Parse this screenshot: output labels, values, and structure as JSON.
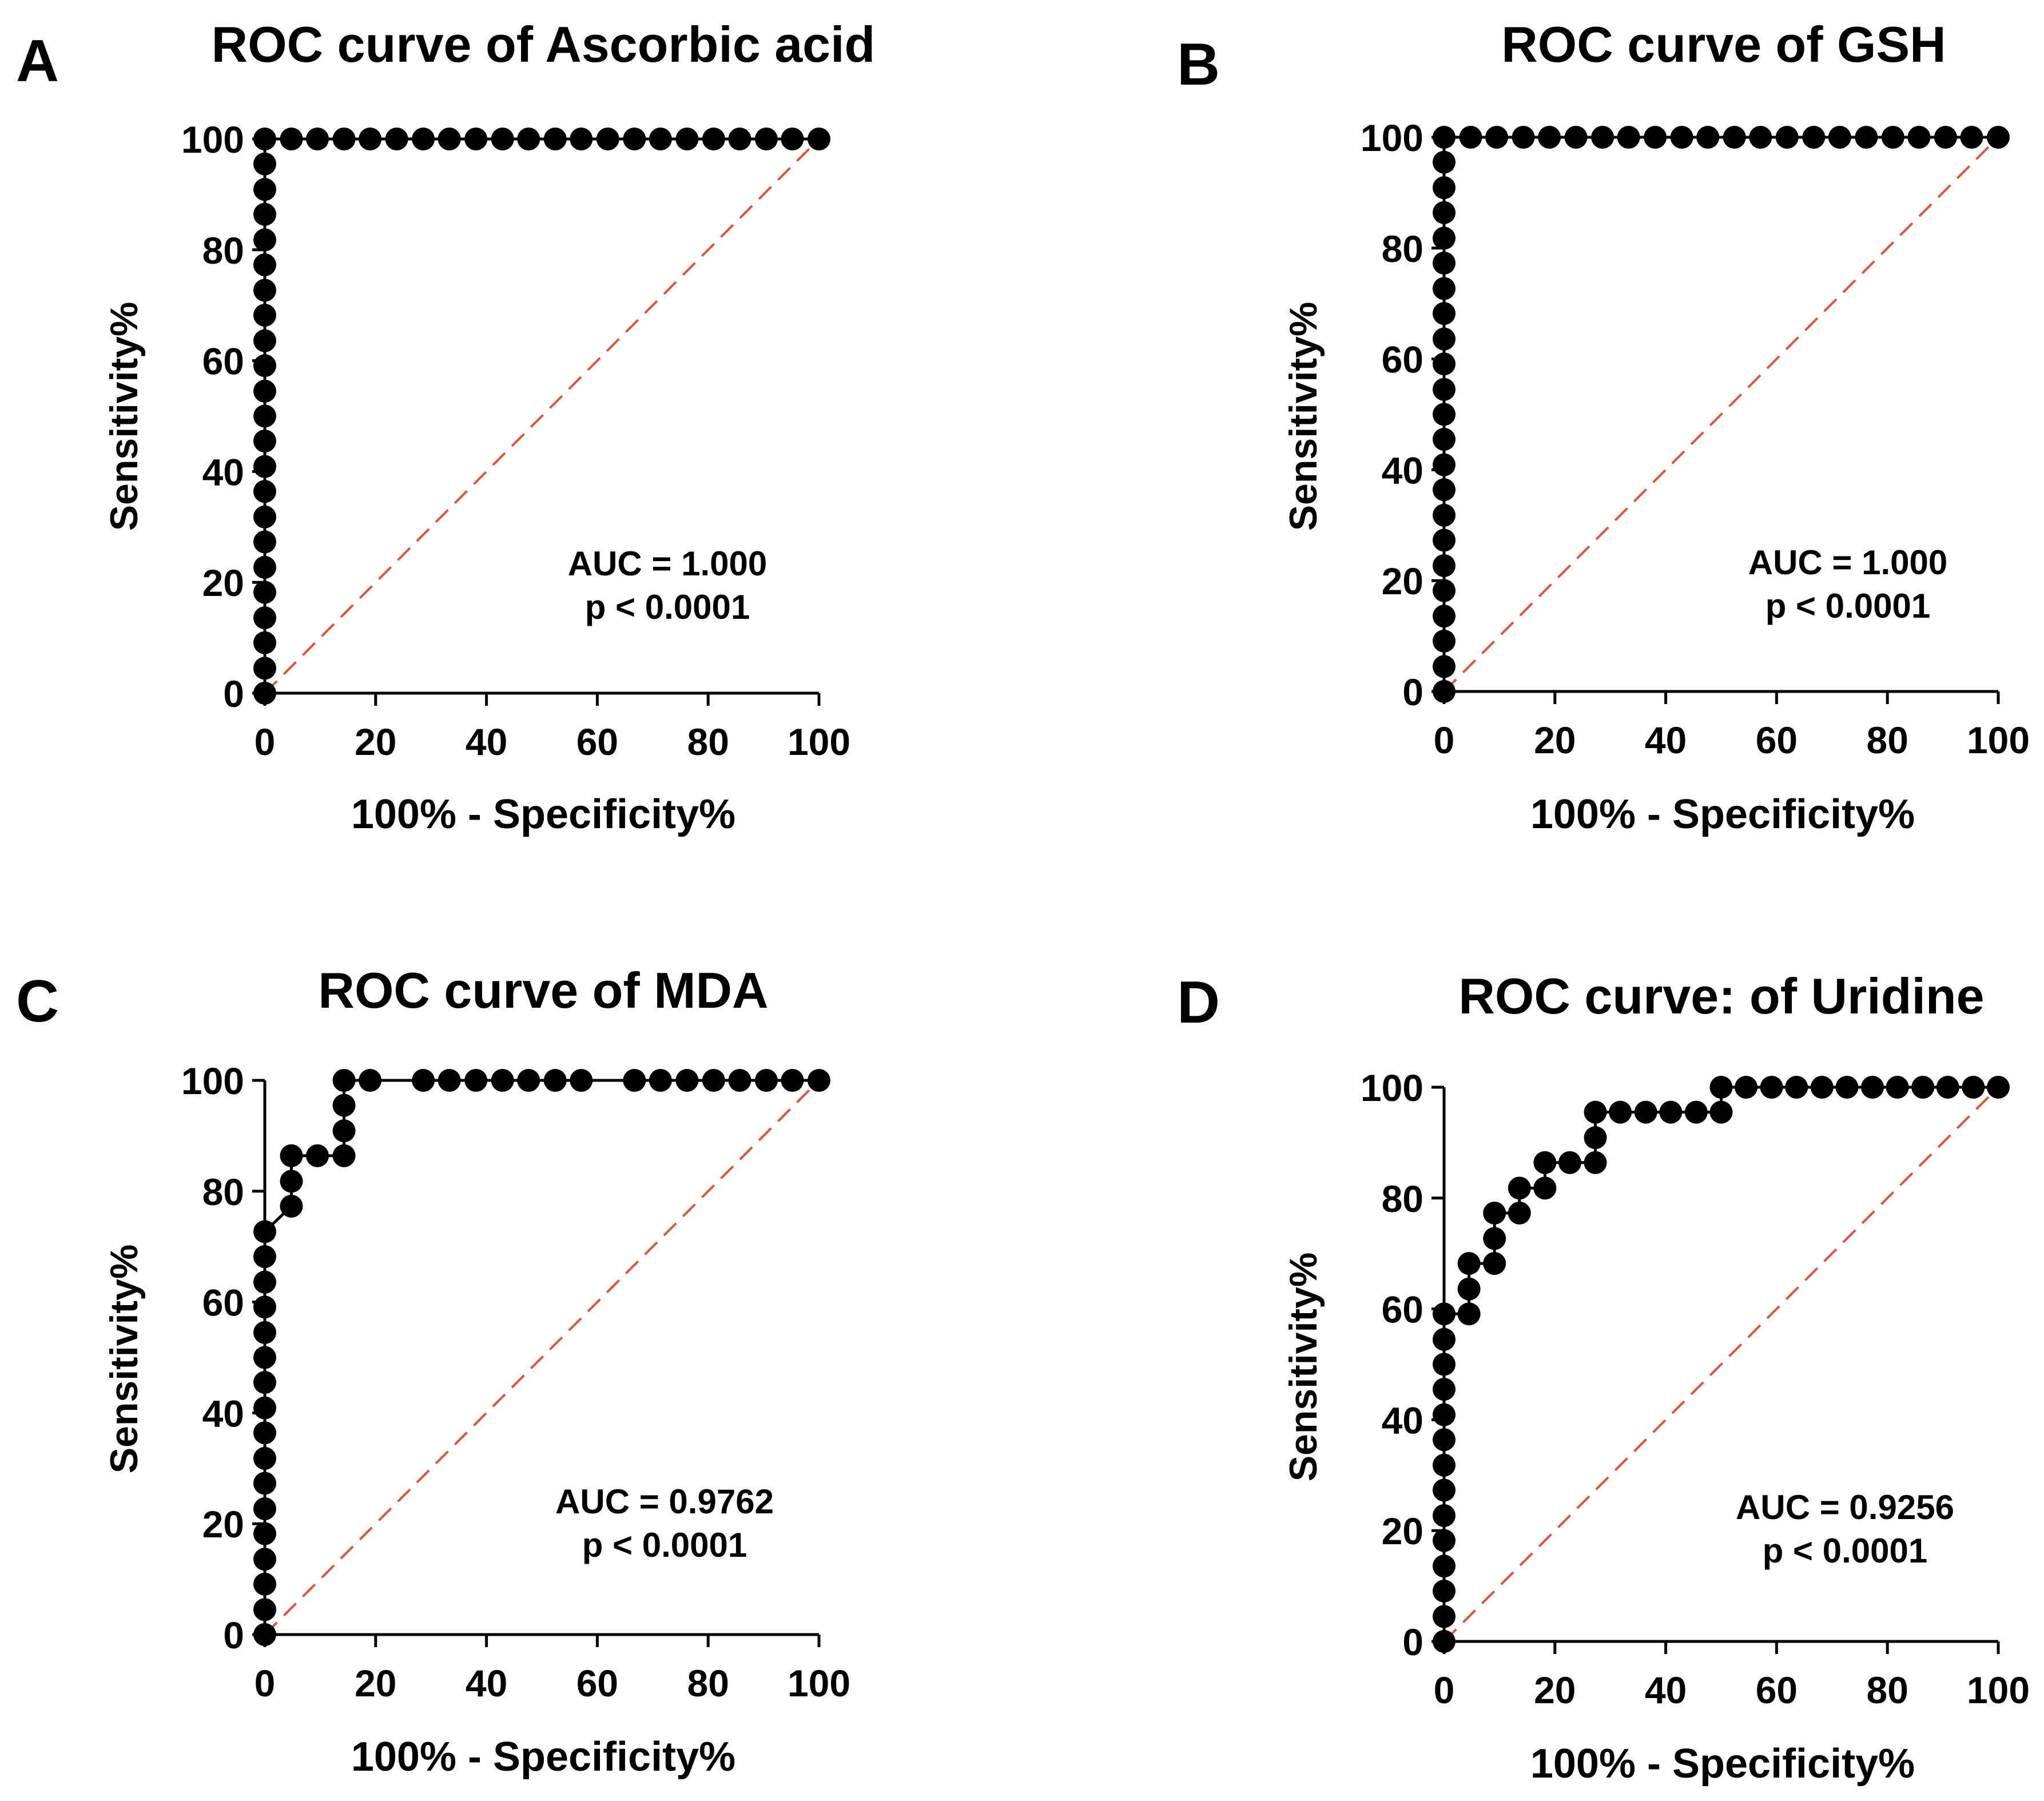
{
  "colors": {
    "marker": "#000000",
    "axis": "#000000",
    "reference_line": "#E0533C",
    "background": "#FFFFFF"
  },
  "chart_data": [
    {
      "panel_letter": "A",
      "type": "scatter",
      "title": "ROC curve of Ascorbic acid",
      "xlabel": "100% - Specificity%",
      "ylabel": "Sensitivity%",
      "xlim": [
        0,
        100
      ],
      "ylim": [
        0,
        100
      ],
      "xticks": [
        0,
        20,
        40,
        60,
        80,
        100
      ],
      "yticks": [
        0,
        20,
        40,
        60,
        80,
        100
      ],
      "annotation": [
        "AUC = 1.000",
        "p < 0.0001"
      ],
      "annotation_placement": "lower-right",
      "reference_line": {
        "from": [
          0,
          0
        ],
        "to": [
          100,
          100
        ],
        "style": "dashed"
      },
      "connect_points": true,
      "series": [
        {
          "name": "ROC",
          "points": [
            [
              0,
              0
            ],
            [
              0,
              4.5
            ],
            [
              0,
              9.1
            ],
            [
              0,
              13.6
            ],
            [
              0,
              18.2
            ],
            [
              0,
              22.7
            ],
            [
              0,
              27.3
            ],
            [
              0,
              31.8
            ],
            [
              0,
              36.4
            ],
            [
              0,
              40.9
            ],
            [
              0,
              45.5
            ],
            [
              0,
              50
            ],
            [
              0,
              54.5
            ],
            [
              0,
              59.1
            ],
            [
              0,
              63.6
            ],
            [
              0,
              68.2
            ],
            [
              0,
              72.7
            ],
            [
              0,
              77.3
            ],
            [
              0,
              81.8
            ],
            [
              0,
              86.4
            ],
            [
              0,
              90.9
            ],
            [
              0,
              95.5
            ],
            [
              0,
              100
            ],
            [
              4.8,
              100
            ],
            [
              9.5,
              100
            ],
            [
              14.3,
              100
            ],
            [
              19,
              100
            ],
            [
              23.8,
              100
            ],
            [
              28.6,
              100
            ],
            [
              33.3,
              100
            ],
            [
              38.1,
              100
            ],
            [
              42.9,
              100
            ],
            [
              47.6,
              100
            ],
            [
              52.4,
              100
            ],
            [
              57.1,
              100
            ],
            [
              61.9,
              100
            ],
            [
              66.7,
              100
            ],
            [
              71.4,
              100
            ],
            [
              76.2,
              100
            ],
            [
              81,
              100
            ],
            [
              85.7,
              100
            ],
            [
              90.5,
              100
            ],
            [
              95.2,
              100
            ],
            [
              100,
              100
            ]
          ]
        }
      ]
    },
    {
      "panel_letter": "B",
      "type": "scatter",
      "title": "ROC curve of GSH",
      "xlabel": "100% - Specificity%",
      "ylabel": "Sensitivity%",
      "xlim": [
        0,
        100
      ],
      "ylim": [
        0,
        100
      ],
      "xticks": [
        0,
        20,
        40,
        60,
        80,
        100
      ],
      "yticks": [
        0,
        20,
        40,
        60,
        80,
        100
      ],
      "annotation": [
        "AUC = 1.000",
        "p < 0.0001"
      ],
      "annotation_placement": "lower-right",
      "reference_line": {
        "from": [
          0,
          0
        ],
        "to": [
          100,
          100
        ],
        "style": "dashed"
      },
      "connect_points": true,
      "series": [
        {
          "name": "ROC",
          "points": [
            [
              0,
              0
            ],
            [
              0,
              4.5
            ],
            [
              0,
              9.1
            ],
            [
              0,
              13.6
            ],
            [
              0,
              18.2
            ],
            [
              0,
              22.7
            ],
            [
              0,
              27.3
            ],
            [
              0,
              31.8
            ],
            [
              0,
              36.4
            ],
            [
              0,
              40.9
            ],
            [
              0,
              45.5
            ],
            [
              0,
              50
            ],
            [
              0,
              54.5
            ],
            [
              0,
              59.1
            ],
            [
              0,
              63.6
            ],
            [
              0,
              68.2
            ],
            [
              0,
              72.7
            ],
            [
              0,
              77.3
            ],
            [
              0,
              81.8
            ],
            [
              0,
              86.4
            ],
            [
              0,
              90.9
            ],
            [
              0,
              95.5
            ],
            [
              0,
              100
            ],
            [
              4.8,
              100
            ],
            [
              9.5,
              100
            ],
            [
              14.3,
              100
            ],
            [
              19,
              100
            ],
            [
              23.8,
              100
            ],
            [
              28.6,
              100
            ],
            [
              33.3,
              100
            ],
            [
              38.1,
              100
            ],
            [
              42.9,
              100
            ],
            [
              47.6,
              100
            ],
            [
              52.4,
              100
            ],
            [
              57.1,
              100
            ],
            [
              61.9,
              100
            ],
            [
              66.7,
              100
            ],
            [
              71.4,
              100
            ],
            [
              76.2,
              100
            ],
            [
              81,
              100
            ],
            [
              85.7,
              100
            ],
            [
              90.5,
              100
            ],
            [
              95.2,
              100
            ],
            [
              100,
              100
            ]
          ]
        }
      ]
    },
    {
      "panel_letter": "C",
      "type": "scatter",
      "title": "ROC curve of MDA",
      "xlabel": "100% - Specificity%",
      "ylabel": "Sensitivity%",
      "xlim": [
        0,
        100
      ],
      "ylim": [
        0,
        100
      ],
      "xticks": [
        0,
        20,
        40,
        60,
        80,
        100
      ],
      "yticks": [
        0,
        20,
        40,
        60,
        80,
        100
      ],
      "annotation": [
        "AUC = 0.9762",
        "p < 0.0001"
      ],
      "annotation_placement": "lower-right",
      "reference_line": {
        "from": [
          0,
          0
        ],
        "to": [
          100,
          100
        ],
        "style": "dashed"
      },
      "connect_points": true,
      "series": [
        {
          "name": "ROC",
          "points": [
            [
              0,
              0
            ],
            [
              0,
              4.5
            ],
            [
              0,
              9.1
            ],
            [
              0,
              13.6
            ],
            [
              0,
              18.2
            ],
            [
              0,
              22.7
            ],
            [
              0,
              27.3
            ],
            [
              0,
              31.8
            ],
            [
              0,
              36.4
            ],
            [
              0,
              40.9
            ],
            [
              0,
              45.5
            ],
            [
              0,
              50
            ],
            [
              0,
              54.5
            ],
            [
              0,
              59.1
            ],
            [
              0,
              63.6
            ],
            [
              0,
              68.2
            ],
            [
              0,
              72.7
            ],
            [
              4.8,
              77.3
            ],
            [
              4.8,
              81.8
            ],
            [
              4.8,
              86.4
            ],
            [
              9.5,
              86.4
            ],
            [
              14.3,
              86.4
            ],
            [
              14.3,
              90.9
            ],
            [
              14.3,
              95.5
            ],
            [
              14.3,
              100
            ],
            [
              19,
              100
            ],
            [
              28.6,
              100
            ],
            [
              33.3,
              100
            ],
            [
              38.1,
              100
            ],
            [
              42.9,
              100
            ],
            [
              47.6,
              100
            ],
            [
              52.4,
              100
            ],
            [
              57.1,
              100
            ],
            [
              66.7,
              100
            ],
            [
              71.4,
              100
            ],
            [
              76.2,
              100
            ],
            [
              81,
              100
            ],
            [
              85.7,
              100
            ],
            [
              90.5,
              100
            ],
            [
              95.2,
              100
            ],
            [
              100,
              100
            ]
          ]
        }
      ]
    },
    {
      "panel_letter": "D",
      "type": "scatter",
      "title": "ROC curve: of Uridine",
      "xlabel": "100% - Specificity%",
      "ylabel": "Sensitivity%",
      "xlim": [
        0,
        100
      ],
      "ylim": [
        0,
        100
      ],
      "xticks": [
        0,
        20,
        40,
        60,
        80,
        100
      ],
      "yticks": [
        0,
        20,
        40,
        60,
        80,
        100
      ],
      "annotation": [
        "AUC = 0.9256",
        "p < 0.0001"
      ],
      "annotation_placement": "lower-right",
      "reference_line": {
        "from": [
          0,
          0
        ],
        "to": [
          100,
          100
        ],
        "style": "dashed"
      },
      "connect_points": true,
      "series": [
        {
          "name": "ROC",
          "points": [
            [
              0,
              0
            ],
            [
              0,
              4.5
            ],
            [
              0,
              9.1
            ],
            [
              0,
              13.6
            ],
            [
              0,
              18.2
            ],
            [
              0,
              22.7
            ],
            [
              0,
              27.3
            ],
            [
              0,
              31.8
            ],
            [
              0,
              36.4
            ],
            [
              0,
              40.9
            ],
            [
              0,
              45.5
            ],
            [
              0,
              50
            ],
            [
              0,
              54.5
            ],
            [
              0,
              59.1
            ],
            [
              4.5,
              59.1
            ],
            [
              4.5,
              63.6
            ],
            [
              4.5,
              68.2
            ],
            [
              9.1,
              68.2
            ],
            [
              9.1,
              72.7
            ],
            [
              9.1,
              77.3
            ],
            [
              13.6,
              77.3
            ],
            [
              13.6,
              81.8
            ],
            [
              18.2,
              81.8
            ],
            [
              18.2,
              86.4
            ],
            [
              22.7,
              86.4
            ],
            [
              27.3,
              86.4
            ],
            [
              27.3,
              90.9
            ],
            [
              27.3,
              95.5
            ],
            [
              31.8,
              95.5
            ],
            [
              36.4,
              95.5
            ],
            [
              40.9,
              95.5
            ],
            [
              45.5,
              95.5
            ],
            [
              50,
              95.5
            ],
            [
              50,
              100
            ],
            [
              54.5,
              100
            ],
            [
              59.1,
              100
            ],
            [
              63.6,
              100
            ],
            [
              68.2,
              100
            ],
            [
              72.7,
              100
            ],
            [
              77.3,
              100
            ],
            [
              81.8,
              100
            ],
            [
              86.4,
              100
            ],
            [
              90.9,
              100
            ],
            [
              95.5,
              100
            ],
            [
              100,
              100
            ]
          ]
        }
      ]
    }
  ]
}
